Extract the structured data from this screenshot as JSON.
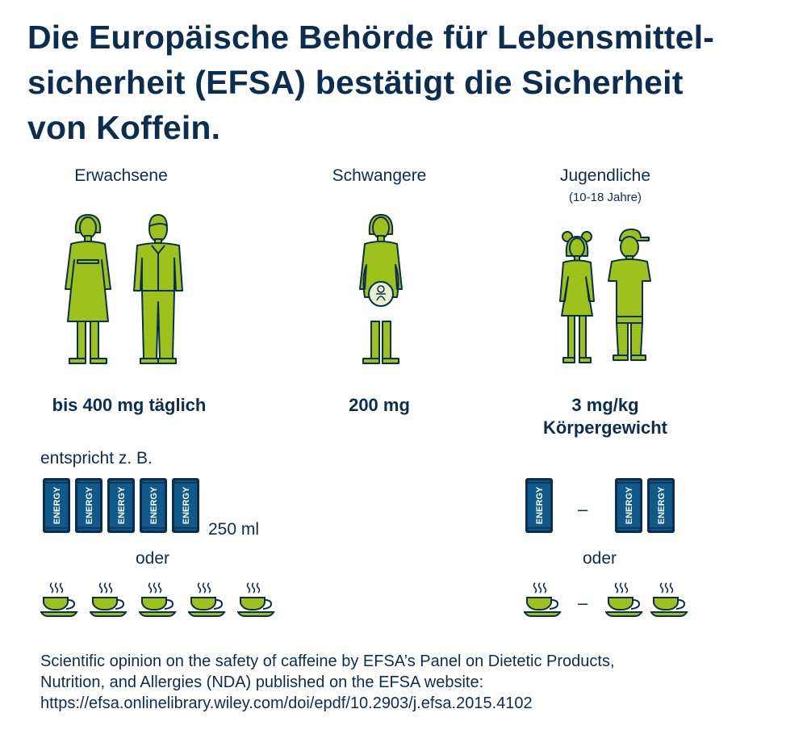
{
  "title": "Die Europäische Behörde für Lebensmittel-sicherheit (EFSA) bestätigt die Sicherheit von Koffein.",
  "title_lines": [
    "Die Europäische Behörde für Lebensmittel-",
    "sicherheit (EFSA) bestätigt die Sicherheit",
    "von Koffein."
  ],
  "groups": {
    "adults": {
      "label": "Erwachsene",
      "amount": "bis 400 mg täglich"
    },
    "pregnant": {
      "label": "Schwangere",
      "amount": "200 mg"
    },
    "teens": {
      "label": "Jugendliche",
      "sublabel": "(10-18 Jahre)",
      "amount_line1": "3 mg/kg",
      "amount_line2": "Körpergewicht"
    }
  },
  "equivalent_label": "entspricht z. B.",
  "can_text": "ENERGY",
  "can_volume": "250 ml",
  "or_label": "oder",
  "range_dash": "–",
  "adult_can_count": 5,
  "adult_cup_count": 5,
  "teen_can_range": [
    1,
    2
  ],
  "teen_cup_range": [
    1,
    2
  ],
  "source_lines": [
    "Scientific opinion on the safety of caffeine by EFSA’s Panel on Dietetic Products,",
    "Nutrition, and Allergies (NDA) published on the EFSA website:",
    "https://efsa.onlinelibrary.wiley.com/doi/epdf/10.2903/j.efsa.2015.4102"
  ],
  "colors": {
    "navy": "#0b2d50",
    "green": "#9dc21c",
    "can_blue": "#0f5a8a"
  }
}
